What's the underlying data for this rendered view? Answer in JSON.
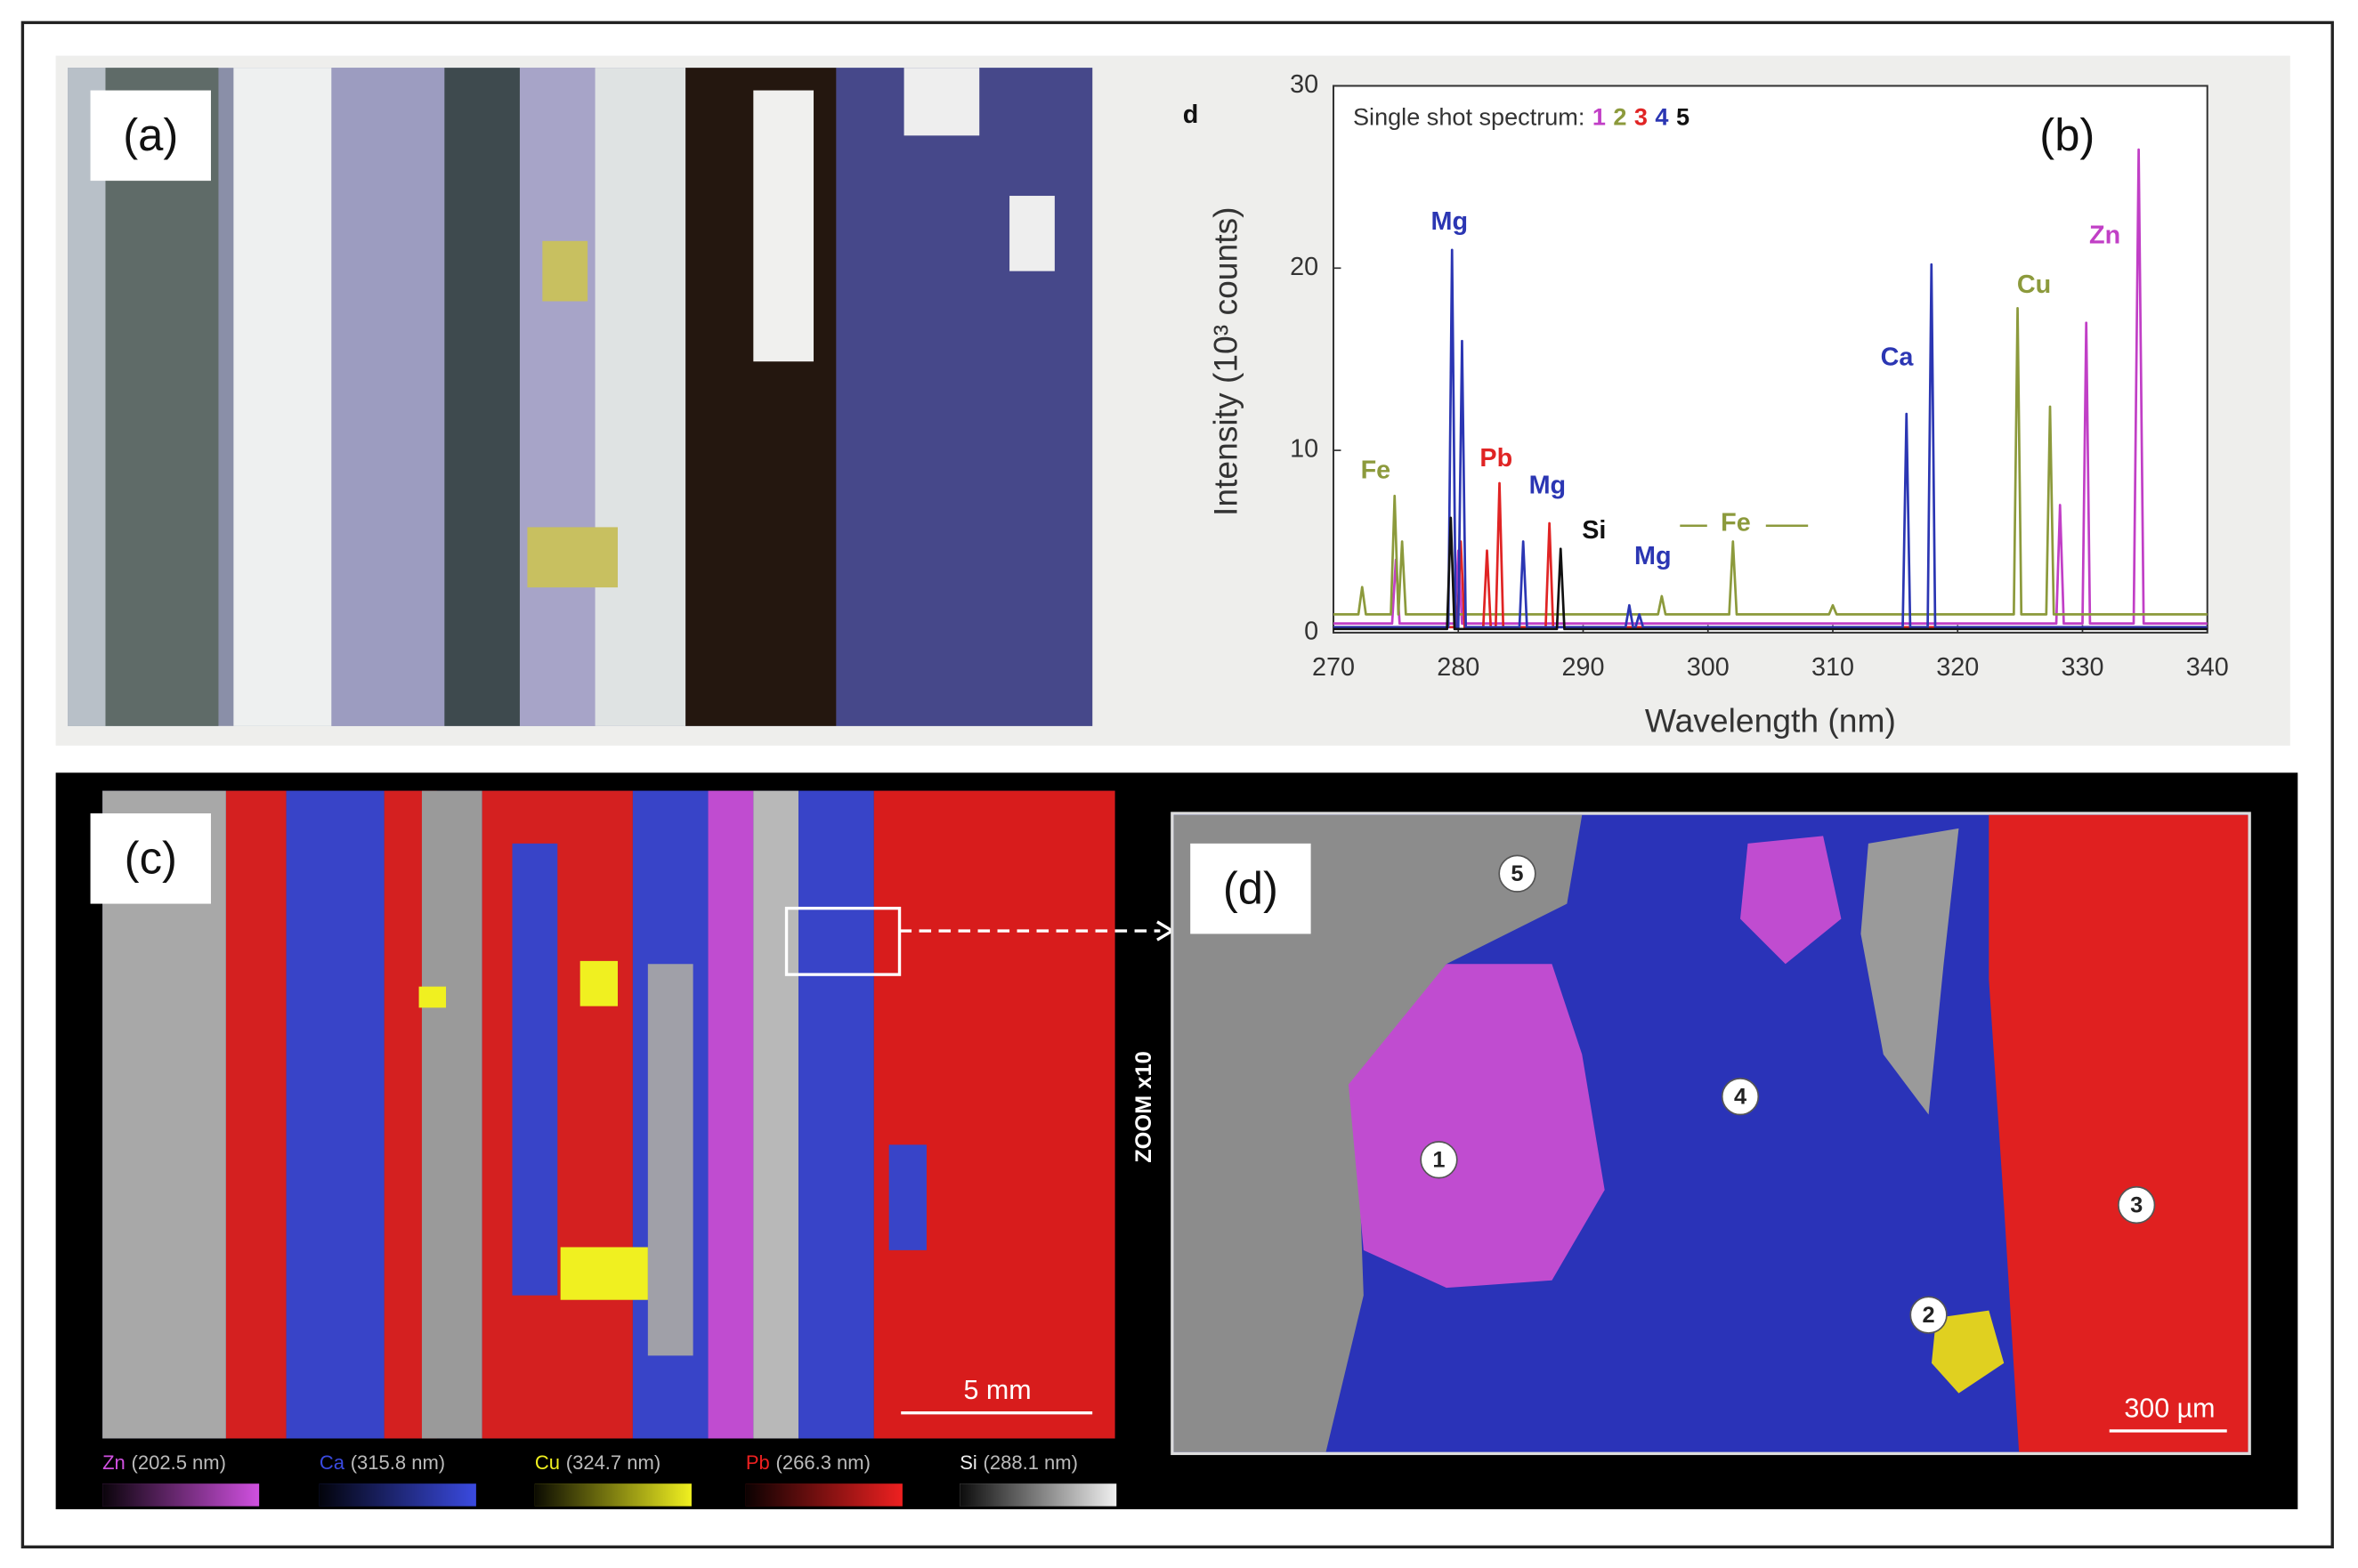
{
  "chart_data": {
    "type": "line",
    "panel_letter": "d",
    "panel_label": "(b)",
    "legend_title": "Single shot spectrum:",
    "x_label": "Wavelength (nm)",
    "y_label": "Intensity (10³ counts)",
    "xlim": [
      270,
      340
    ],
    "xticks": [
      270,
      280,
      290,
      300,
      310,
      320,
      330,
      340
    ],
    "ylim": [
      0,
      30
    ],
    "yticks": [
      0,
      10,
      20,
      30
    ],
    "series": [
      {
        "name": "1",
        "color": "#c13fc6",
        "x": [
          270,
          274.7,
          275,
          275.3,
          279.7,
          280,
          280.3,
          327.9,
          328.2,
          328.5,
          330,
          330.3,
          330.6,
          334.1,
          334.5,
          334.9,
          340
        ],
        "values": [
          0.5,
          0.5,
          4,
          0.5,
          0.5,
          4.5,
          0.5,
          0.5,
          7,
          0.5,
          0.5,
          17,
          0.5,
          0.5,
          26.5,
          0.5,
          0.5
        ]
      },
      {
        "name": "2",
        "color": "#8c9a3c",
        "x": [
          270,
          272,
          272.3,
          272.6,
          274.6,
          274.9,
          275.2,
          275.5,
          275.8,
          296,
          296.3,
          296.6,
          301.7,
          302,
          302.3,
          309.7,
          310,
          310.3,
          324.5,
          324.8,
          325.1,
          327.1,
          327.4,
          327.7,
          340
        ],
        "values": [
          1,
          1,
          2.5,
          1,
          1,
          7.5,
          1,
          5,
          1,
          1,
          2,
          1,
          1,
          5,
          1,
          1,
          1.5,
          1,
          1,
          17.8,
          1,
          1,
          12.4,
          1,
          1
        ]
      },
      {
        "name": "3",
        "color": "#e02424",
        "x": [
          270,
          279.9,
          280.2,
          280.5,
          282,
          282.3,
          282.6,
          283,
          283.3,
          283.6,
          287,
          287.3,
          287.6,
          340
        ],
        "values": [
          0.3,
          0.3,
          5,
          0.3,
          0.3,
          4.5,
          0.3,
          0.3,
          8.2,
          0.3,
          0.3,
          6,
          0.3,
          0.3
        ]
      },
      {
        "name": "4",
        "color": "#2b36b3",
        "x": [
          270,
          279.2,
          279.5,
          279.8,
          280,
          280.3,
          280.6,
          284.9,
          285.2,
          285.5,
          293.4,
          293.7,
          294,
          294.2,
          294.5,
          294.8,
          315.6,
          315.9,
          316.2,
          317.6,
          317.9,
          318.2,
          340
        ],
        "values": [
          0.3,
          0.3,
          21,
          0.3,
          0.3,
          16,
          0.3,
          0.3,
          5,
          0.3,
          0.3,
          1.5,
          0.3,
          0.3,
          1,
          0.3,
          0.3,
          12,
          0.3,
          0.3,
          20.2,
          0.3,
          0.3
        ]
      },
      {
        "name": "5",
        "color": "#111111",
        "x": [
          270,
          279.1,
          279.4,
          279.7,
          287.9,
          288.2,
          288.5,
          340
        ],
        "values": [
          0.2,
          0.2,
          6.3,
          0.2,
          0.2,
          4.6,
          0.2,
          0.2
        ]
      }
    ],
    "annotations": [
      {
        "text": "Fe",
        "color": "#8c9a3c"
      },
      {
        "text": "Mg",
        "color": "#2b36b3"
      },
      {
        "text": "Pb",
        "color": "#e02424"
      },
      {
        "text": "Mg",
        "color": "#2b36b3"
      },
      {
        "text": "Si",
        "color": "#111111"
      },
      {
        "text": "Mg",
        "color": "#2b36b3"
      },
      {
        "text": "Fe",
        "color": "#8c9a3c"
      },
      {
        "text": "Ca",
        "color": "#2b36b3"
      },
      {
        "text": "Cu",
        "color": "#8c9a3c"
      },
      {
        "text": "Zn",
        "color": "#c13fc6"
      }
    ]
  },
  "panels": {
    "a": {
      "label": "(a)"
    },
    "c": {
      "label": "(c)",
      "scale_bar": "5 mm",
      "zoom": "ZOOM x10",
      "legend": [
        {
          "element": "Zn",
          "line": "(202.5 nm)",
          "color": "#d050e0"
        },
        {
          "element": "Ca",
          "line": "(315.8 nm)",
          "color": "#3a4ae0"
        },
        {
          "element": "Cu",
          "line": "(324.7 nm)",
          "color": "#f0f020"
        },
        {
          "element": "Pb",
          "line": "(266.3 nm)",
          "color": "#ee2020"
        },
        {
          "element": "Si",
          "line": "(288.1 nm)",
          "color": "#f0f0f0"
        }
      ]
    },
    "d": {
      "label": "(d)",
      "scale_bar": "300 µm",
      "markers": [
        "1",
        "2",
        "3",
        "4",
        "5"
      ]
    }
  }
}
